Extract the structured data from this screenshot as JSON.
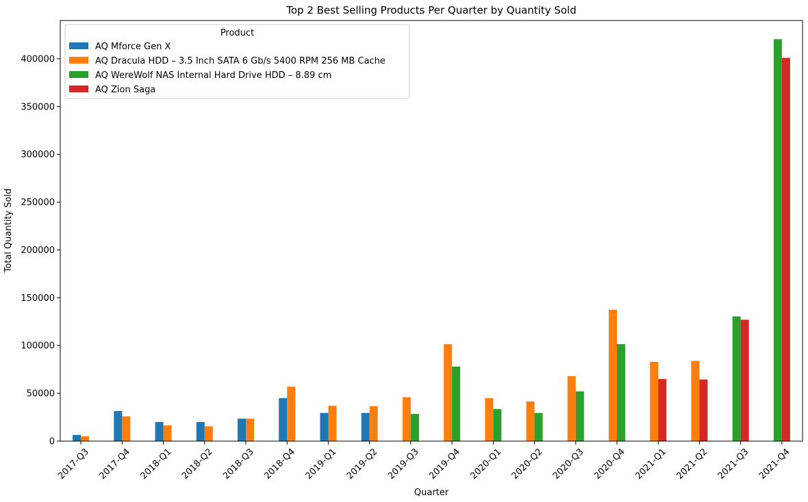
{
  "chart_data": {
    "type": "bar",
    "title": "Top 2 Best Selling Products Per Quarter by Quantity Sold",
    "xlabel": "Quarter",
    "ylabel": "Total Quantity Sold",
    "ylim": [
      0,
      440000
    ],
    "yticks": [
      0,
      50000,
      100000,
      150000,
      200000,
      250000,
      300000,
      350000,
      400000
    ],
    "grid": false,
    "legend": {
      "title": "Product",
      "placement": "top-left"
    },
    "categories": [
      "2017-Q3",
      "2017-Q4",
      "2018-Q1",
      "2018-Q2",
      "2018-Q3",
      "2018-Q4",
      "2019-Q1",
      "2019-Q2",
      "2019-Q3",
      "2019-Q4",
      "2020-Q1",
      "2020-Q2",
      "2020-Q3",
      "2020-Q4",
      "2021-Q1",
      "2021-Q2",
      "2021-Q3",
      "2021-Q4"
    ],
    "series": [
      {
        "name": "AQ Mforce Gen X",
        "color": "#1f77b4",
        "values": [
          6500,
          31500,
          20000,
          20000,
          23500,
          45000,
          29500,
          29500,
          null,
          null,
          null,
          null,
          null,
          null,
          null,
          null,
          null,
          null
        ]
      },
      {
        "name": "AQ Dracula HDD – 3.5 Inch SATA 6 Gb/s 5400 RPM 256 MB Cache",
        "color": "#ff7f0e",
        "values": [
          5000,
          26000,
          16500,
          15500,
          23500,
          57000,
          37000,
          36500,
          46000,
          101500,
          45000,
          41500,
          68000,
          137500,
          83000,
          84000,
          null,
          null
        ]
      },
      {
        "name": "AQ WereWolf NAS Internal Hard Drive HDD – 8.89 cm",
        "color": "#2ca02c",
        "values": [
          null,
          null,
          null,
          null,
          null,
          null,
          null,
          null,
          28500,
          78000,
          33500,
          29500,
          52000,
          101500,
          null,
          null,
          130500,
          420500
        ]
      },
      {
        "name": "AQ Zion Saga",
        "color": "#d62728",
        "values": [
          null,
          null,
          null,
          null,
          null,
          null,
          null,
          null,
          null,
          null,
          null,
          null,
          null,
          null,
          65000,
          64500,
          127000,
          401000
        ]
      }
    ]
  }
}
